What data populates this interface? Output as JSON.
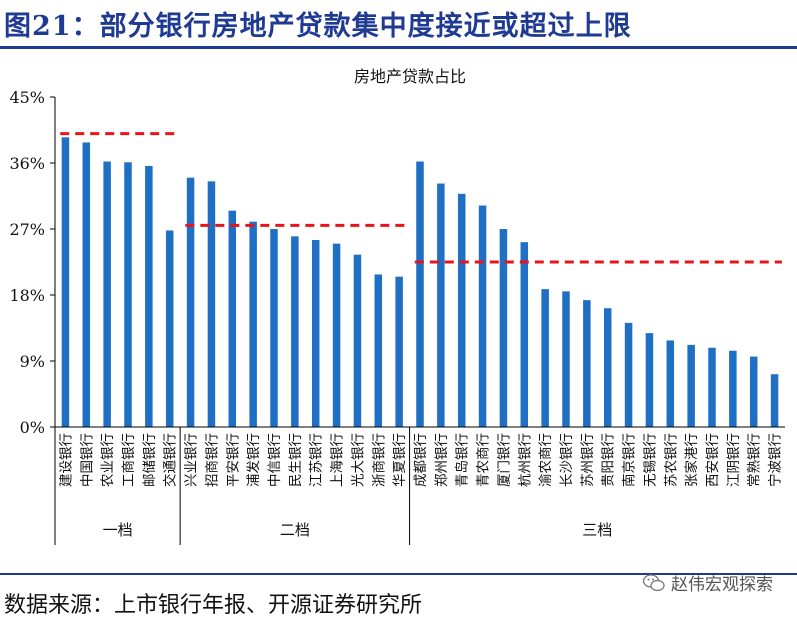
{
  "figure": {
    "title": "图21：部分银行房地产贷款集中度接近或超过上限",
    "source": "数据来源：上市银行年报、开源证券研究所",
    "watermark": "赵伟宏观探索"
  },
  "colors": {
    "bar": "#1f6fc5",
    "threshold": "#e8141b",
    "title": "#1f3a93"
  },
  "chart_data": {
    "type": "bar",
    "title": "房地产贷款占比",
    "xlabel": "",
    "ylabel": "",
    "ylim": [
      0,
      45
    ],
    "yticks": [
      "0%",
      "9%",
      "18%",
      "27%",
      "36%",
      "45%"
    ],
    "ytick_values": [
      0,
      9,
      18,
      27,
      36,
      45
    ],
    "categories": [
      "建设银行",
      "中国银行",
      "农业银行",
      "工商银行",
      "邮储银行",
      "交通银行",
      "兴业银行",
      "招商银行",
      "平安银行",
      "浦发银行",
      "中信银行",
      "民生银行",
      "江苏银行",
      "上海银行",
      "光大银行",
      "浙商银行",
      "华夏银行",
      "成都银行",
      "郑州银行",
      "青岛银行",
      "青农商行",
      "厦门银行",
      "杭州银行",
      "渝农商行",
      "长沙银行",
      "苏州银行",
      "贵阳银行",
      "南京银行",
      "无锡银行",
      "苏农银行",
      "张家港行",
      "西安银行",
      "江阴银行",
      "常熟银行",
      "宁波银行"
    ],
    "values": [
      39.5,
      38.8,
      36.2,
      36.1,
      35.6,
      26.8,
      34.0,
      33.5,
      29.5,
      28.0,
      27.0,
      26.0,
      25.5,
      25.0,
      23.5,
      20.8,
      20.5,
      36.2,
      33.2,
      31.8,
      30.2,
      27.0,
      25.2,
      18.8,
      18.5,
      17.3,
      16.2,
      14.2,
      12.8,
      11.8,
      11.2,
      10.8,
      10.4,
      9.6,
      7.2
    ],
    "groups": [
      {
        "label": "一档",
        "start": 0,
        "end": 5,
        "limit": 40
      },
      {
        "label": "二档",
        "start": 6,
        "end": 16,
        "limit": 27.5
      },
      {
        "label": "三档",
        "start": 17,
        "end": 34,
        "limit": 22.5
      }
    ]
  }
}
